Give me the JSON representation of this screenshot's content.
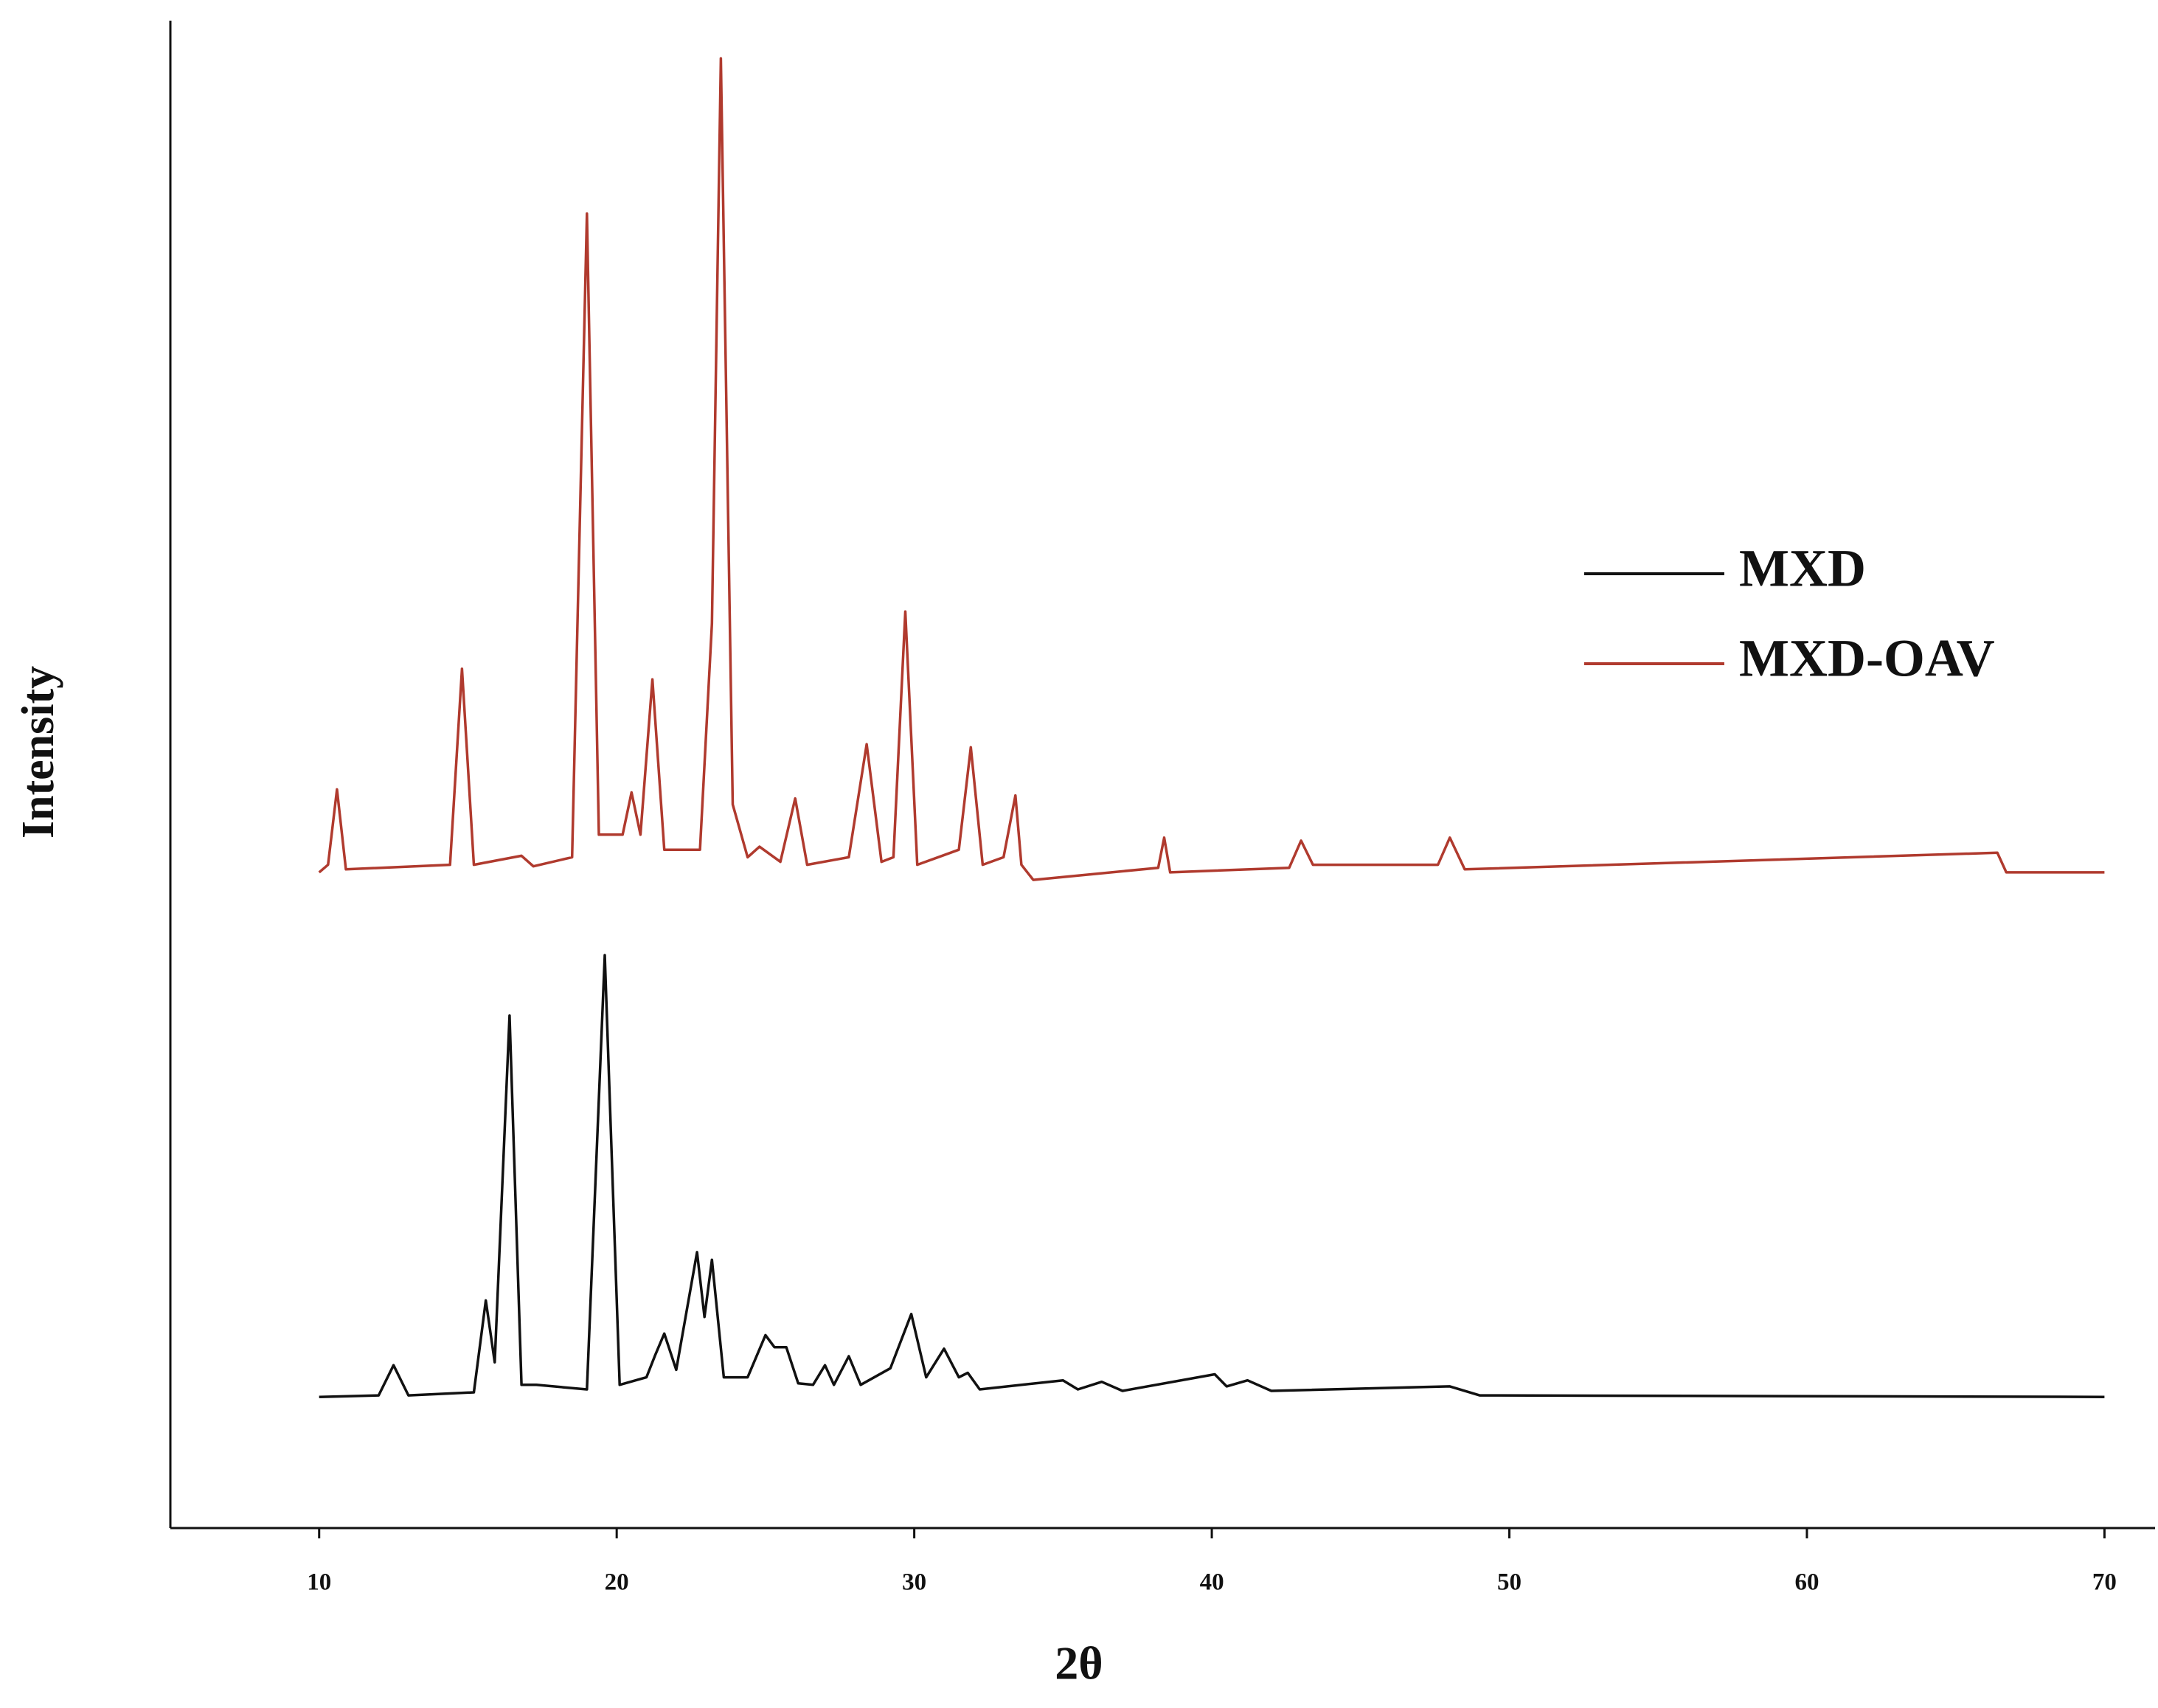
{
  "chart_data": {
    "type": "line",
    "xlabel": "2θ",
    "ylabel": "Intensity",
    "xlim": [
      5,
      71.7
    ],
    "ylim": [
      0,
      100
    ],
    "xticks": [
      10,
      20,
      30,
      40,
      50,
      60,
      70
    ],
    "legend": "right",
    "series": [
      {
        "name": "MXD",
        "color": "#111111",
        "x": [
          10,
          12.0,
          12.5,
          13.0,
          15.2,
          15.6,
          15.9,
          16.4,
          16.8,
          17.3,
          19.0,
          19.6,
          20.1,
          21.0,
          21.3,
          21.6,
          22.0,
          22.7,
          22.95,
          23.2,
          23.6,
          24.4,
          25.0,
          25.3,
          25.7,
          26.1,
          26.6,
          27.0,
          27.3,
          27.8,
          28.2,
          29.2,
          29.9,
          30.4,
          31.0,
          31.5,
          31.8,
          32.2,
          35,
          35.5,
          36.3,
          37,
          40.1,
          40.5,
          41.2,
          42,
          48,
          49,
          70
        ],
        "values": [
          8.7,
          8.8,
          10.8,
          8.8,
          9.0,
          15.1,
          11,
          34,
          9.5,
          9.5,
          9.2,
          38,
          9.5,
          10,
          11.5,
          12.9,
          10.5,
          18.3,
          14,
          17.8,
          10,
          10,
          12.8,
          12,
          12,
          9.6,
          9.5,
          10.8,
          9.5,
          11.4,
          9.5,
          10.6,
          14.2,
          10,
          11.9,
          10,
          10.3,
          9.2,
          9.8,
          9.2,
          9.7,
          9.1,
          10.2,
          9.4,
          9.8,
          9.1,
          9.4,
          8.8,
          8.7
        ]
      },
      {
        "name": "MXD-OAV",
        "color": "#b03a2e",
        "x": [
          10,
          10.3,
          10.6,
          10.9,
          14.4,
          14.8,
          15.2,
          16.8,
          17.2,
          18.5,
          19.0,
          19.4,
          20.2,
          20.5,
          20.8,
          21.2,
          21.6,
          22.8,
          23.2,
          23.5,
          23.9,
          24.4,
          24.8,
          25.5,
          26.0,
          26.4,
          27.8,
          28.4,
          28.9,
          29.3,
          29.7,
          30.1,
          31.5,
          31.9,
          32.3,
          33.0,
          33.4,
          33.6,
          34,
          38.2,
          38.4,
          38.6,
          42.6,
          43,
          43.4,
          47.6,
          48,
          48.5,
          66.4,
          66.7,
          70
        ],
        "values": [
          43.5,
          44,
          49,
          43.7,
          44,
          57,
          44,
          44.6,
          43.9,
          44.5,
          87.2,
          46,
          46,
          48.8,
          46,
          56.3,
          45,
          45,
          60,
          97.5,
          48,
          44.5,
          45.2,
          44.2,
          48.4,
          44,
          44.5,
          52,
          44.2,
          44.5,
          60.8,
          44,
          45,
          51.8,
          44,
          44.5,
          48.6,
          44,
          43,
          43.8,
          45.8,
          43.5,
          43.8,
          45.6,
          44,
          44,
          45.8,
          43.7,
          44.8,
          43.5,
          43.5
        ]
      }
    ]
  }
}
